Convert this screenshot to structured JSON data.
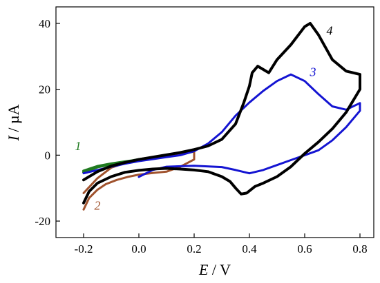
{
  "chart_data": {
    "type": "line",
    "title": "",
    "xlabel_var": "E",
    "xlabel_unit": " / V",
    "ylabel_var": "I",
    "ylabel_unit": " / µA",
    "xlim": [
      -0.3,
      0.85
    ],
    "ylim": [
      -25,
      45
    ],
    "x_ticks": [
      {
        "value": -0.2,
        "label": "-0.2"
      },
      {
        "value": 0.0,
        "label": "0.0"
      },
      {
        "value": 0.2,
        "label": "0.2"
      },
      {
        "value": 0.4,
        "label": "0.4"
      },
      {
        "value": 0.6,
        "label": "0.6"
      },
      {
        "value": 0.8,
        "label": "0.8"
      }
    ],
    "y_ticks": [
      {
        "value": -20,
        "label": "-20"
      },
      {
        "value": 0,
        "label": "0"
      },
      {
        "value": 20,
        "label": "20"
      },
      {
        "value": 40,
        "label": "40"
      }
    ],
    "grid": false,
    "series": [
      {
        "name": "1",
        "color": "#1f7a1f",
        "width": 4,
        "label_at": [
          -0.22,
          1.5
        ],
        "x": [
          -0.2,
          -0.15,
          -0.1,
          -0.05,
          0.0,
          0.05,
          0.1,
          0.15,
          0.2,
          0.2,
          0.15,
          0.1,
          0.05,
          0.0,
          -0.05,
          -0.1,
          -0.15,
          -0.2
        ],
        "y": [
          -5.2,
          -3.6,
          -2.7,
          -2.1,
          -1.3,
          -0.7,
          0.0,
          0.6,
          1.3,
          1.2,
          0.3,
          -0.4,
          -0.9,
          -1.4,
          -2.0,
          -2.6,
          -3.4,
          -4.8
        ]
      },
      {
        "name": "2",
        "color": "#a0522d",
        "width": 3,
        "label_at": [
          -0.15,
          -16.5
        ],
        "x": [
          -0.2,
          -0.18,
          -0.15,
          -0.12,
          -0.08,
          -0.04,
          0.0,
          0.05,
          0.1,
          0.15,
          0.2,
          0.2,
          0.15,
          0.1,
          0.05,
          0.0,
          -0.05,
          -0.1,
          -0.15,
          -0.2
        ],
        "y": [
          -16.5,
          -13.0,
          -10.5,
          -8.8,
          -7.5,
          -6.6,
          -5.9,
          -5.4,
          -5.0,
          -3.5,
          -1.3,
          1.2,
          0.4,
          -0.5,
          -1.0,
          -1.6,
          -2.4,
          -3.8,
          -7.0,
          -11.5
        ]
      },
      {
        "name": "3",
        "color": "#1414d2",
        "width": 3,
        "label_at": [
          0.63,
          24.0
        ],
        "x": [
          0.0,
          0.05,
          0.1,
          0.2,
          0.3,
          0.35,
          0.4,
          0.45,
          0.5,
          0.55,
          0.6,
          0.65,
          0.7,
          0.75,
          0.8,
          0.8,
          0.75,
          0.7,
          0.65,
          0.6,
          0.55,
          0.5,
          0.45,
          0.4,
          0.35,
          0.3,
          0.25,
          0.2,
          0.15,
          0.1,
          0.05,
          0.0,
          -0.05,
          -0.1,
          -0.15,
          -0.2
        ],
        "y": [
          -6.6,
          -4.5,
          -3.5,
          -3.2,
          -3.6,
          -4.5,
          -5.5,
          -4.5,
          -3.0,
          -1.5,
          0.0,
          1.5,
          4.5,
          8.5,
          13.5,
          15.8,
          13.8,
          14.8,
          18.5,
          22.5,
          24.5,
          22.5,
          19.5,
          16.0,
          12.0,
          7.0,
          3.5,
          1.2,
          0.0,
          -0.6,
          -1.2,
          -1.8,
          -2.6,
          -3.5,
          -4.5,
          -5.5
        ]
      },
      {
        "name": "4",
        "color": "#000000",
        "width": 4,
        "label_at": [
          0.69,
          36.5
        ],
        "x": [
          -0.2,
          -0.18,
          -0.15,
          -0.1,
          -0.05,
          0.0,
          0.05,
          0.1,
          0.15,
          0.2,
          0.25,
          0.3,
          0.33,
          0.35,
          0.37,
          0.39,
          0.42,
          0.45,
          0.5,
          0.55,
          0.6,
          0.65,
          0.7,
          0.75,
          0.8,
          0.8,
          0.75,
          0.7,
          0.65,
          0.62,
          0.6,
          0.55,
          0.5,
          0.47,
          0.45,
          0.43,
          0.41,
          0.4,
          0.38,
          0.35,
          0.3,
          0.25,
          0.2,
          0.15,
          0.1,
          0.05,
          0.0,
          -0.05,
          -0.1,
          -0.15,
          -0.2
        ],
        "y": [
          -14.5,
          -11.0,
          -8.5,
          -6.5,
          -5.2,
          -4.6,
          -4.2,
          -4.0,
          -4.2,
          -4.5,
          -5.0,
          -6.5,
          -8.0,
          -10.0,
          -11.8,
          -11.5,
          -9.5,
          -8.5,
          -6.5,
          -3.5,
          0.5,
          4.0,
          8.0,
          13.0,
          20.0,
          24.5,
          25.5,
          29.0,
          36.5,
          40.0,
          39.0,
          33.5,
          29.0,
          25.0,
          26.0,
          27.0,
          25.0,
          21.0,
          16.0,
          9.5,
          4.8,
          2.8,
          1.7,
          0.8,
          0.1,
          -0.6,
          -1.3,
          -2.2,
          -3.3,
          -5.0,
          -7.5
        ]
      }
    ]
  }
}
